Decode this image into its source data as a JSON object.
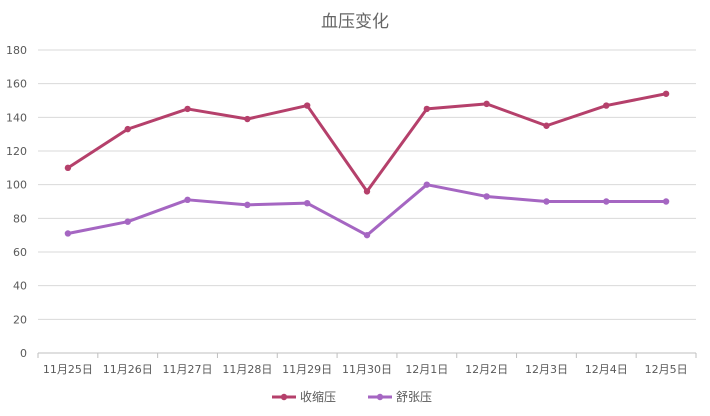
{
  "chart_data": {
    "type": "line",
    "title": "血压变化",
    "xlabel": "",
    "ylabel": "",
    "categories": [
      "11月25日",
      "11月26日",
      "11月27日",
      "11月28日",
      "11月29日",
      "11月30日",
      "12月1日",
      "12月2日",
      "12月3日",
      "12月4日",
      "12月5日"
    ],
    "ylim": [
      0,
      180
    ],
    "yticks": [
      0,
      20,
      40,
      60,
      80,
      100,
      120,
      140,
      160,
      180
    ],
    "grid": true,
    "legend_position": "bottom",
    "series": [
      {
        "name": "收缩压",
        "color": "#b5406b",
        "values": [
          110,
          133,
          145,
          139,
          147,
          96,
          145,
          148,
          135,
          147,
          154
        ]
      },
      {
        "name": "舒张压",
        "color": "#a566c2",
        "values": [
          71,
          78,
          91,
          88,
          89,
          70,
          100,
          93,
          90,
          90,
          90
        ]
      }
    ]
  }
}
